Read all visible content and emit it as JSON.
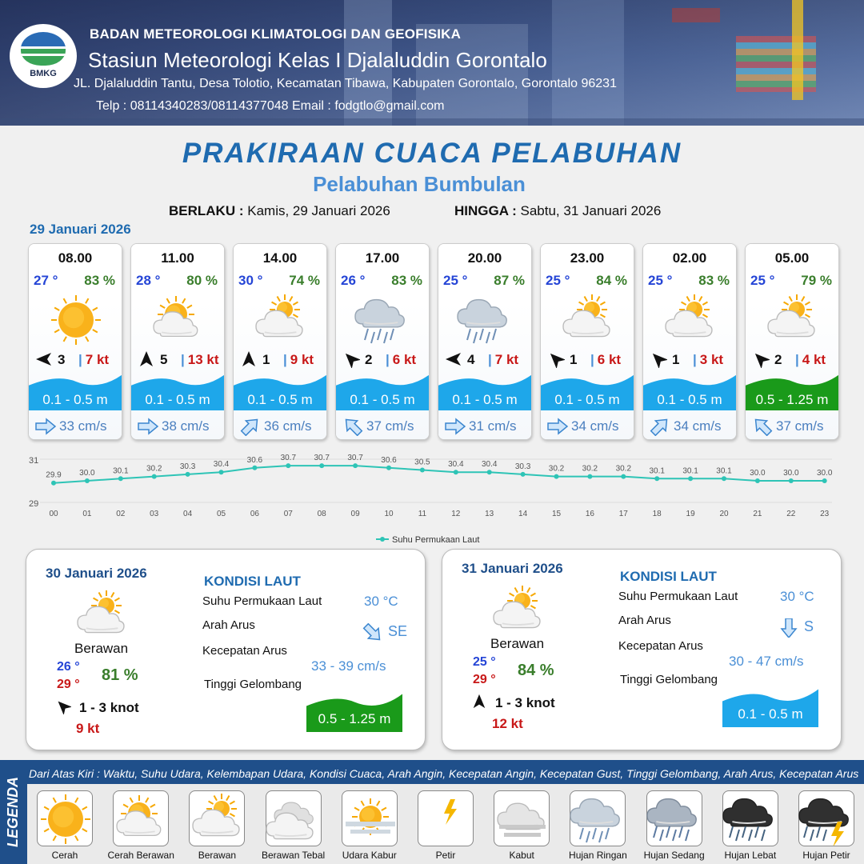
{
  "header": {
    "agency": "BADAN METEOROLOGI KLIMATOLOGI DAN GEOFISIKA",
    "station": "Stasiun Meteorologi Kelas I Djalaluddin Gorontalo",
    "address": "JL. Djalaluddin Tantu, Desa Tolotio, Kecamatan Tibawa, Kabupaten Gorontalo, Gorontalo 96231",
    "contact": "Telp : 08114340283/08114377048 Email : fodgtlo@gmail.com",
    "logo_text": "BMKG"
  },
  "title": "PRAKIRAAN CUACA PELABUHAN",
  "subtitle": "Pelabuhan Bumbulan",
  "validity": {
    "from_label": "BERLAKU :",
    "from_value": "Kamis, 29 Januari 2026",
    "to_label": "HINGGA :",
    "to_value": "Sabtu, 31 Januari 2026"
  },
  "main_date": "29 Januari 2026",
  "cards": [
    {
      "time": "08.00",
      "temp": "27 °",
      "hum": "83 %",
      "icon": "sun-icon",
      "wind_dir_deg": 270,
      "wind": "3",
      "gust": "7 kt",
      "wave": "0.1 - 0.5 m",
      "wave_level": "low",
      "cur_dir_deg": 90,
      "current": "33 cm/s"
    },
    {
      "time": "11.00",
      "temp": "28 °",
      "hum": "80 %",
      "icon": "partly-cloudy-icon",
      "wind_dir_deg": 0,
      "wind": "5",
      "gust": "13 kt",
      "wave": "0.1 - 0.5 m",
      "wave_level": "low",
      "cur_dir_deg": 90,
      "current": "38 cm/s"
    },
    {
      "time": "14.00",
      "temp": "30 °",
      "hum": "74 %",
      "icon": "cloudy-icon",
      "wind_dir_deg": 0,
      "wind": "1",
      "gust": "9 kt",
      "wave": "0.1 - 0.5 m",
      "wave_level": "low",
      "cur_dir_deg": 45,
      "current": "36 cm/s"
    },
    {
      "time": "17.00",
      "temp": "26 °",
      "hum": "83 %",
      "icon": "light-rain-icon",
      "wind_dir_deg": 315,
      "wind": "2",
      "gust": "6 kt",
      "wave": "0.1 - 0.5 m",
      "wave_level": "low",
      "cur_dir_deg": 315,
      "current": "37 cm/s"
    },
    {
      "time": "20.00",
      "temp": "25 °",
      "hum": "87 %",
      "icon": "light-rain-icon",
      "wind_dir_deg": 270,
      "wind": "4",
      "gust": "7 kt",
      "wave": "0.1 - 0.5 m",
      "wave_level": "low",
      "cur_dir_deg": 90,
      "current": "31 cm/s"
    },
    {
      "time": "23.00",
      "temp": "25 °",
      "hum": "84 %",
      "icon": "cloudy-icon",
      "wind_dir_deg": 315,
      "wind": "1",
      "gust": "6 kt",
      "wave": "0.1 - 0.5 m",
      "wave_level": "low",
      "cur_dir_deg": 90,
      "current": "34 cm/s"
    },
    {
      "time": "02.00",
      "temp": "25 °",
      "hum": "83 %",
      "icon": "cloudy-icon",
      "wind_dir_deg": 315,
      "wind": "1",
      "gust": "3 kt",
      "wave": "0.1 - 0.5 m",
      "wave_level": "low",
      "cur_dir_deg": 45,
      "current": "34 cm/s"
    },
    {
      "time": "05.00",
      "temp": "25 °",
      "hum": "79 %",
      "icon": "cloudy-icon",
      "wind_dir_deg": 315,
      "wind": "2",
      "gust": "4 kt",
      "wave": "0.5 - 1.25 m",
      "wave_level": "moderate",
      "cur_dir_deg": 315,
      "current": "37 cm/s"
    }
  ],
  "chart_data": {
    "type": "line",
    "x": [
      "00",
      "01",
      "02",
      "03",
      "04",
      "05",
      "06",
      "07",
      "08",
      "09",
      "10",
      "11",
      "12",
      "13",
      "14",
      "15",
      "16",
      "17",
      "18",
      "19",
      "20",
      "21",
      "22",
      "23"
    ],
    "series": [
      {
        "name": "Suhu Permukaan Laut",
        "values": [
          29.9,
          30.0,
          30.1,
          30.2,
          30.3,
          30.4,
          30.6,
          30.7,
          30.7,
          30.7,
          30.6,
          30.5,
          30.4,
          30.4,
          30.3,
          30.2,
          30.2,
          30.2,
          30.1,
          30.1,
          30.1,
          30.0,
          30.0,
          30.0
        ]
      }
    ],
    "ylim": [
      29,
      31
    ],
    "y_ticks": [
      "31",
      "29"
    ],
    "legend": "bottom-center",
    "color": "#2ec4b6"
  },
  "outlook": [
    {
      "date": "30 Januari 2026",
      "condition": "Berawan",
      "icon": "cloudy-icon",
      "temp_min": "26 °",
      "temp_max": "29 °",
      "hum": "81 %",
      "wind": "1 - 3 knot",
      "wind_dir_deg": 315,
      "gust": "9 kt",
      "section": "KONDISI LAUT",
      "sst_label": "Suhu Permukaan Laut",
      "sst": "30 °C",
      "dir_label": "Arah Arus",
      "dir": "SE",
      "cur_dir_deg": 135,
      "speed_label": "Kecepatan Arus",
      "speed": "33   - 39 cm/s",
      "wave_label": "Tinggi Gelombang",
      "wave": "0.5 - 1.25 m",
      "wave_level": "moderate"
    },
    {
      "date": "31 Januari 2026",
      "condition": "Berawan",
      "icon": "cloudy-icon",
      "temp_min": "25 °",
      "temp_max": "29 °",
      "hum": "84 %",
      "wind": "1 - 3 knot",
      "wind_dir_deg": 0,
      "gust": "12 kt",
      "section": "KONDISI LAUT",
      "sst_label": "Suhu Permukaan Laut",
      "sst": "30 °C",
      "dir_label": "Arah Arus",
      "dir": "S",
      "cur_dir_deg": 180,
      "speed_label": "Kecepatan Arus",
      "speed": "30 - 47 cm/s",
      "wave_label": "Tinggi Gelombang",
      "wave": "0.1 - 0.5 m",
      "wave_level": "low"
    }
  ],
  "legend": {
    "side_label": "LEGENDA",
    "caption": "Dari Atas Kiri : Waktu, Suhu Udara, Kelembapan Udara, Kondisi Cuaca, Arah Angin, Kecepatan Angin, Kecepatan Gust, Tinggi Gelombang, Arah Arus, Kecepatan Arus",
    "items": [
      {
        "label": "Cerah",
        "icon": "sun-icon"
      },
      {
        "label": "Cerah Berawan",
        "icon": "partly-cloudy-icon"
      },
      {
        "label": "Berawan",
        "icon": "cloudy-icon"
      },
      {
        "label": "Berawan Tebal",
        "icon": "overcast-icon"
      },
      {
        "label": "Udara Kabur",
        "icon": "haze-icon"
      },
      {
        "label": "Petir",
        "icon": "lightning-icon"
      },
      {
        "label": "Kabut",
        "icon": "fog-icon"
      },
      {
        "label": "Hujan Ringan",
        "icon": "light-rain-icon"
      },
      {
        "label": "Hujan Sedang",
        "icon": "moderate-rain-icon"
      },
      {
        "label": "Hujan Lebat",
        "icon": "heavy-rain-icon"
      },
      {
        "label": "Hujan Petir",
        "icon": "thunderstorm-icon"
      }
    ]
  },
  "colors": {
    "brand": "#1f6bb0",
    "wave_low": "#1ea7ea",
    "wave_moderate": "#1a9a1a",
    "gust": "#c81818",
    "temp": "#2545d6",
    "hum": "#3a7e2c"
  }
}
